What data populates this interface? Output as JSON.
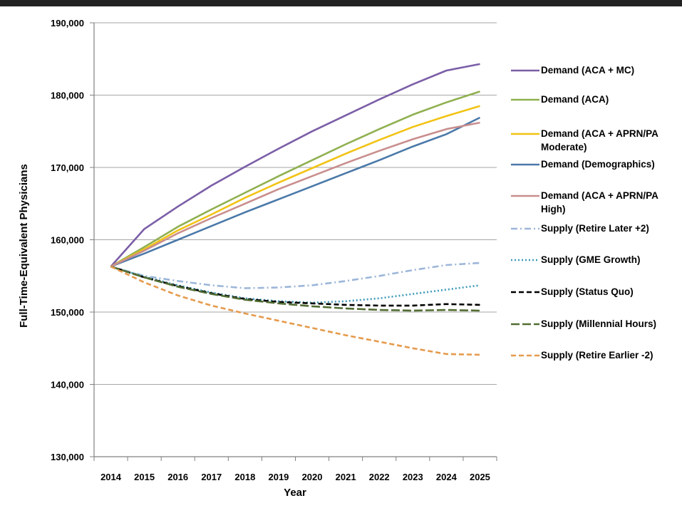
{
  "chart_data": {
    "type": "line",
    "xlabel": "Year",
    "ylabel": "Full-Time-Equivalent Physicians",
    "ylim": [
      130000,
      190000
    ],
    "yticks": [
      130000,
      140000,
      150000,
      160000,
      170000,
      180000,
      190000
    ],
    "ytick_labels": [
      "130,000",
      "140,000",
      "150,000",
      "160,000",
      "170,000",
      "180,000",
      "190,000"
    ],
    "x": [
      2014,
      2015,
      2016,
      2017,
      2018,
      2019,
      2020,
      2021,
      2022,
      2023,
      2024,
      2025
    ],
    "xtick_labels": [
      "2014",
      "2015",
      "2016",
      "2017",
      "2018",
      "2019",
      "2020",
      "2021",
      "2022",
      "2023",
      "2024",
      "2025"
    ],
    "grid": "horizontal",
    "legend_position": "right",
    "series": [
      {
        "name": "Demand (ACA + MC)",
        "name_lines": [
          "Demand (ACA + MC)"
        ],
        "color": "#7b5ea7",
        "dash": "solid",
        "values": [
          156300,
          161500,
          164600,
          167500,
          170100,
          172600,
          175000,
          177200,
          179400,
          181500,
          183400,
          184300
        ]
      },
      {
        "name": "Demand (ACA)",
        "name_lines": [
          "Demand (ACA)"
        ],
        "color": "#8fb050",
        "dash": "solid",
        "values": [
          156300,
          159000,
          161800,
          164200,
          166500,
          168800,
          171000,
          173200,
          175300,
          177300,
          179000,
          180500
        ]
      },
      {
        "name": "Demand (ACA + APRN/PA Moderate)",
        "name_lines": [
          "Demand (ACA + APRN/PA",
          "Moderate)"
        ],
        "color": "#f2c314",
        "dash": "solid",
        "values": [
          156300,
          158700,
          161300,
          163500,
          165800,
          167900,
          169900,
          171900,
          173800,
          175600,
          177100,
          178500
        ]
      },
      {
        "name": "Demand (Demographics)",
        "name_lines": [
          "Demand (Demographics)"
        ],
        "color": "#4a79a9",
        "dash": "solid",
        "values": [
          156300,
          158100,
          160000,
          161900,
          163800,
          165600,
          167400,
          169200,
          171000,
          172900,
          174600,
          176900
        ]
      },
      {
        "name": "Demand (ACA + APRN/PA High)",
        "name_lines": [
          "Demand (ACA + APRN/PA",
          "High)"
        ],
        "color": "#c98e8e",
        "dash": "solid",
        "values": [
          156300,
          158500,
          160900,
          163000,
          165000,
          167000,
          168800,
          170600,
          172300,
          173900,
          175300,
          176200
        ]
      },
      {
        "name": "Supply (Retire Later +2)",
        "name_lines": [
          "Supply (Retire Later +2)"
        ],
        "color": "#9db6d9",
        "dash": "dashdot",
        "values": [
          156300,
          155000,
          154300,
          153700,
          153300,
          153400,
          153700,
          154300,
          155000,
          155800,
          156500,
          156800
        ]
      },
      {
        "name": "Supply (GME Growth)",
        "name_lines": [
          "Supply (GME Growth)"
        ],
        "color": "#3f9ab8",
        "dash": "dotted",
        "values": [
          156300,
          154900,
          153700,
          152700,
          151900,
          151500,
          151300,
          151500,
          151900,
          152500,
          153100,
          153700
        ]
      },
      {
        "name": "Supply (Status Quo)",
        "name_lines": [
          "Supply (Status Quo)"
        ],
        "color": "#000000",
        "dash": "dashed",
        "values": [
          156300,
          154800,
          153600,
          152600,
          151800,
          151400,
          151200,
          151000,
          150900,
          150900,
          151100,
          151000
        ]
      },
      {
        "name": "Supply (Millennial Hours)",
        "name_lines": [
          "Supply (Millennial Hours)"
        ],
        "color": "#516d32",
        "dash": "longdash",
        "values": [
          156300,
          154800,
          153500,
          152500,
          151700,
          151200,
          150800,
          150500,
          150300,
          150200,
          150300,
          150200
        ]
      },
      {
        "name": "Supply (Retire Earlier -2)",
        "name_lines": [
          "Supply (Retire Earlier -2)"
        ],
        "color": "#e59a4c",
        "dash": "dashed",
        "values": [
          156300,
          154100,
          152300,
          150900,
          149800,
          148800,
          147800,
          146800,
          145900,
          145000,
          144200,
          144100
        ]
      }
    ]
  }
}
